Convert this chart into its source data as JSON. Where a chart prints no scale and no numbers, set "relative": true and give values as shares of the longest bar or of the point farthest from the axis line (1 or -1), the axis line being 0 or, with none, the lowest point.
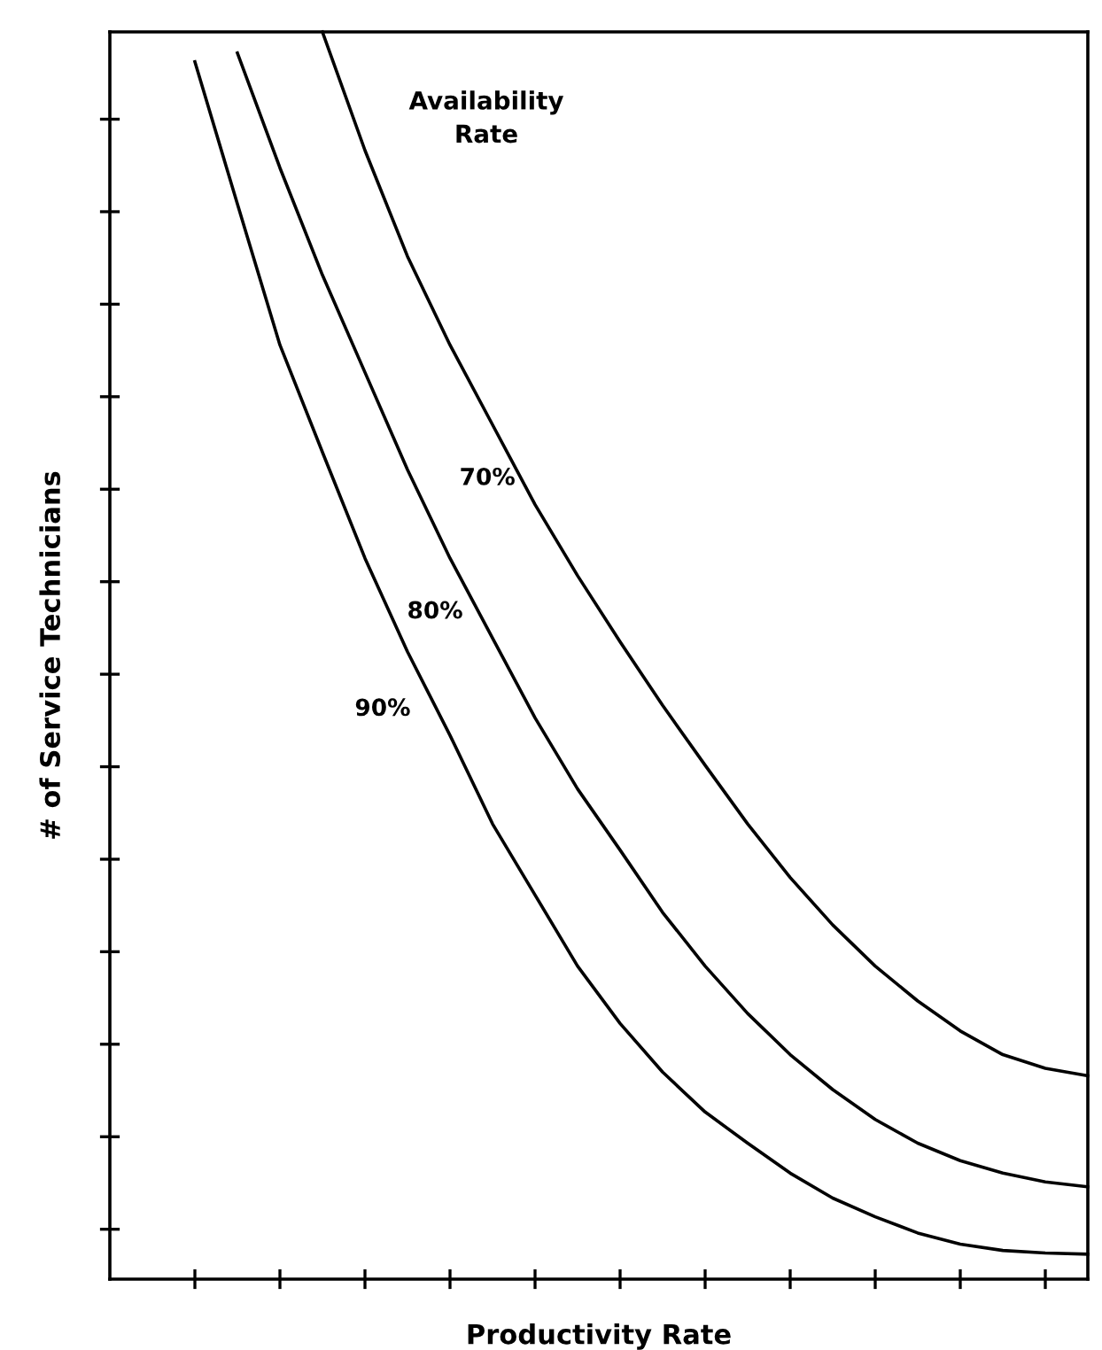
{
  "chart_data": {
    "type": "line",
    "relative": true,
    "xlabel": "Productivity Rate",
    "ylabel": "# of Service Technicians",
    "legend_title": "Availability\nRate",
    "tick_labels": false,
    "grid": false,
    "legend": false,
    "marker": "none",
    "line_style": "solid",
    "categories": [
      null,
      null,
      null,
      null,
      null,
      null,
      null,
      null,
      null,
      null,
      null,
      null,
      null,
      null,
      null,
      null,
      null,
      null,
      null,
      null,
      null,
      null,
      null,
      null
    ],
    "series": [
      {
        "name": "70%",
        "color": "#000000",
        "values": [
          null,
          null,
          null,
          null,
          null,
          1.0,
          0.905,
          0.82,
          0.749,
          0.685,
          0.621,
          0.564,
          0.511,
          0.46,
          0.412,
          0.365,
          0.322,
          0.284,
          0.251,
          0.223,
          0.199,
          0.18,
          0.169,
          0.163
        ]
      },
      {
        "name": "80%",
        "color": "#000000",
        "values": [
          null,
          null,
          null,
          0.983,
          0.891,
          0.805,
          0.727,
          0.649,
          0.578,
          0.514,
          0.45,
          0.393,
          0.344,
          0.294,
          0.251,
          0.213,
          0.18,
          0.152,
          0.128,
          0.109,
          0.095,
          0.085,
          0.078,
          0.074
        ]
      },
      {
        "name": "90%",
        "color": "#000000",
        "values": [
          null,
          null,
          0.976,
          0.862,
          0.749,
          0.663,
          0.578,
          0.503,
          0.436,
          0.365,
          0.308,
          0.251,
          0.205,
          0.166,
          0.134,
          0.109,
          0.085,
          0.065,
          0.05,
          0.037,
          0.028,
          0.023,
          0.021,
          0.02
        ]
      }
    ]
  }
}
